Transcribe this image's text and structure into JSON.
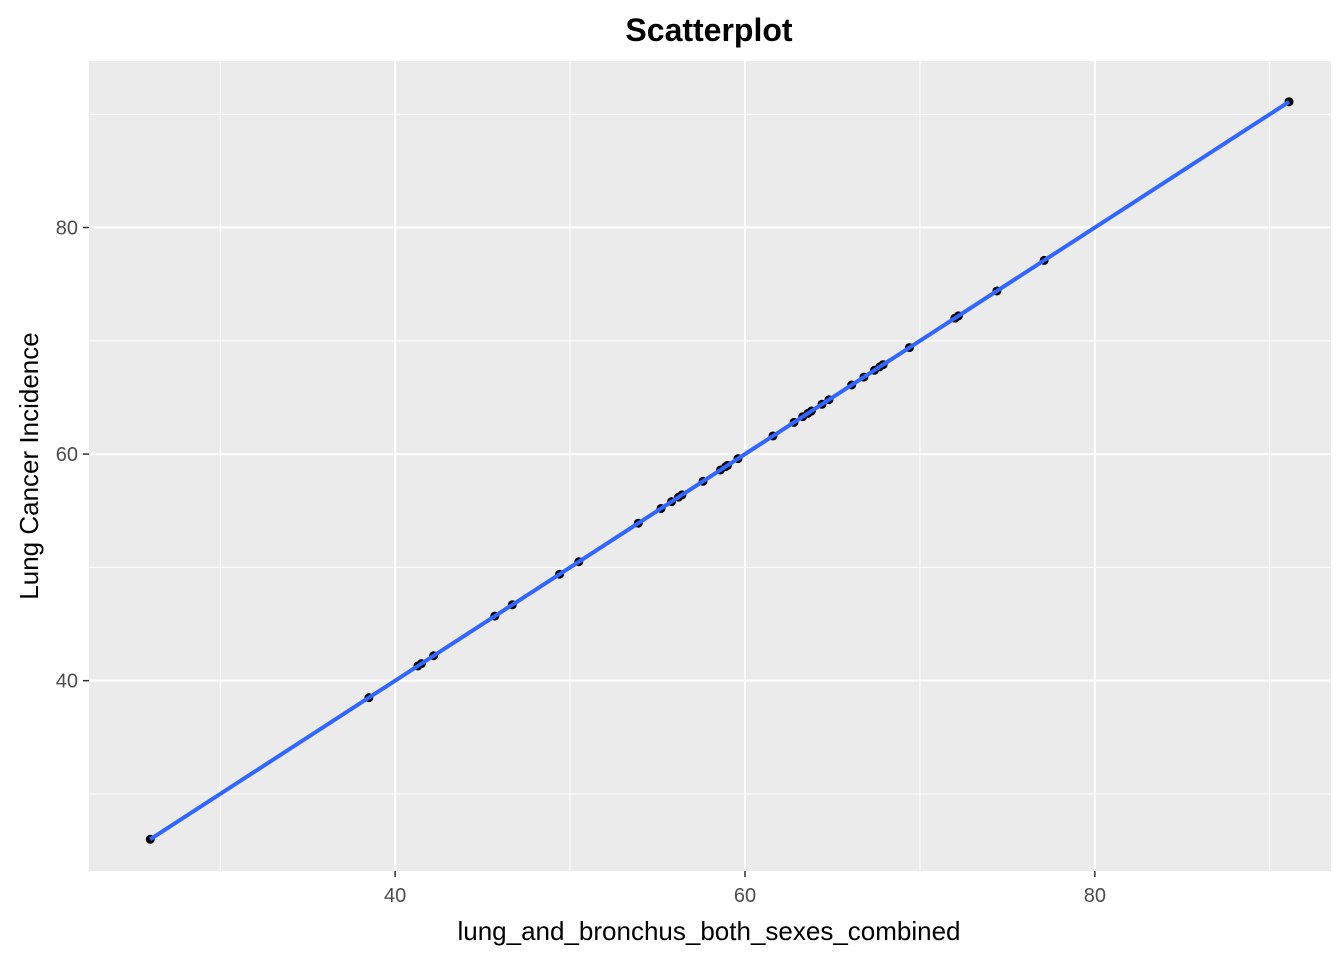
{
  "chart_data": {
    "type": "scatter",
    "title": "Scatterplot",
    "xlabel": "lung_and_bronchus_both_sexes_combined",
    "ylabel": "Lung Cancer Incidence",
    "xlim": [
      22.5,
      93.5
    ],
    "ylim": [
      23.2,
      94.7
    ],
    "x_ticks": [
      40,
      60,
      80
    ],
    "y_ticks": [
      40,
      60,
      80
    ],
    "x_minor": [
      30,
      50,
      70,
      90
    ],
    "y_minor": [
      30,
      50,
      70,
      90
    ],
    "grid": true,
    "panel_background": "#ebebeb",
    "grid_color": "#ffffff",
    "point_color": "#000000",
    "fit_color": "#3366ff",
    "series": [
      {
        "points": [
          [
            26.0,
            26.0
          ],
          [
            38.5,
            38.5
          ],
          [
            41.3,
            41.3
          ],
          [
            41.5,
            41.5
          ],
          [
            42.2,
            42.2
          ],
          [
            45.7,
            45.7
          ],
          [
            46.7,
            46.7
          ],
          [
            49.4,
            49.4
          ],
          [
            50.5,
            50.5
          ],
          [
            53.9,
            53.9
          ],
          [
            55.2,
            55.2
          ],
          [
            55.8,
            55.8
          ],
          [
            56.2,
            56.2
          ],
          [
            56.4,
            56.4
          ],
          [
            57.6,
            57.6
          ],
          [
            58.6,
            58.6
          ],
          [
            58.9,
            58.9
          ],
          [
            59.0,
            59.0
          ],
          [
            59.6,
            59.6
          ],
          [
            61.6,
            61.6
          ],
          [
            62.8,
            62.8
          ],
          [
            63.3,
            63.3
          ],
          [
            63.6,
            63.6
          ],
          [
            63.8,
            63.8
          ],
          [
            64.4,
            64.4
          ],
          [
            64.8,
            64.8
          ],
          [
            66.1,
            66.1
          ],
          [
            66.8,
            66.8
          ],
          [
            67.4,
            67.4
          ],
          [
            67.7,
            67.7
          ],
          [
            67.9,
            67.9
          ],
          [
            69.4,
            69.4
          ],
          [
            72.0,
            72.0
          ],
          [
            72.2,
            72.2
          ],
          [
            74.4,
            74.4
          ],
          [
            77.1,
            77.1
          ],
          [
            91.1,
            91.1
          ]
        ]
      }
    ],
    "fit_line": {
      "x": [
        26.0,
        91.1
      ],
      "y": [
        26.0,
        91.1
      ]
    }
  }
}
